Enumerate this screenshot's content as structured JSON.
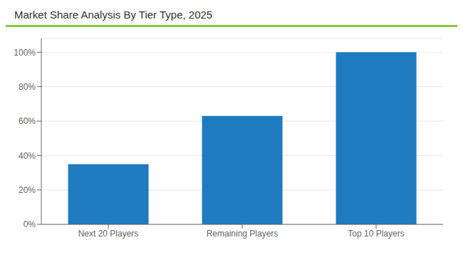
{
  "chart_data": {
    "type": "bar",
    "title": "Market Share Analysis By Tier Type, 2025",
    "categories": [
      "Next 20 Players",
      "Remaining Players",
      "Top 10 Players"
    ],
    "values": [
      35,
      63,
      100
    ],
    "color": "#1f7bbf",
    "ylim": [
      0,
      108
    ],
    "yticks": [
      {
        "value": 0,
        "label": "0%"
      },
      {
        "value": 20,
        "label": "20%"
      },
      {
        "value": 40,
        "label": "40%"
      },
      {
        "value": 60,
        "label": "60%"
      },
      {
        "value": 80,
        "label": "80%"
      },
      {
        "value": 100,
        "label": "100%"
      }
    ],
    "grid": true
  }
}
